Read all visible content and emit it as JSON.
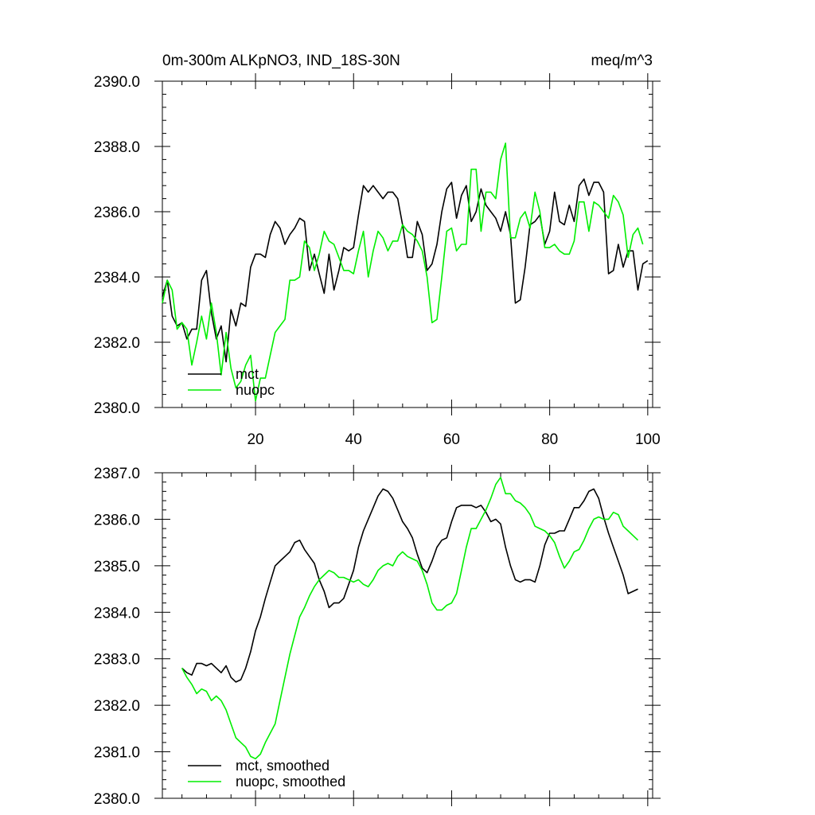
{
  "chart_data": [
    {
      "type": "line",
      "title_left": "0m-300m ALKpNO3, IND_18S-30N",
      "title_right": "meq/m^3",
      "xlim": [
        1,
        101
      ],
      "ylim": [
        2380,
        2390
      ],
      "xticks": [
        20,
        40,
        60,
        80,
        100
      ],
      "xtick_labels": [
        "20",
        "40",
        "60",
        "80",
        "100"
      ],
      "yticks": [
        2380,
        2382,
        2384,
        2386,
        2388,
        2390
      ],
      "ytick_labels": [
        "2380.0",
        "2382.0",
        "2384.0",
        "2386.0",
        "2388.0",
        "2390.0"
      ],
      "legend_position": "bottom-left",
      "colors": {
        "mct": "#000000",
        "nuopc": "#00ee00"
      },
      "series": [
        {
          "name": "mct",
          "x_start": 1,
          "values": [
            2383.4,
            2383.9,
            2382.8,
            2382.5,
            2382.6,
            2382.1,
            2382.4,
            2382.4,
            2383.9,
            2384.2,
            2382.9,
            2382.1,
            2382.5,
            2381.4,
            2383.0,
            2382.5,
            2383.2,
            2383.1,
            2384.3,
            2384.7,
            2384.7,
            2384.6,
            2385.3,
            2385.7,
            2385.5,
            2385.0,
            2385.3,
            2385.5,
            2385.8,
            2385.7,
            2384.2,
            2384.7,
            2384.1,
            2383.5,
            2384.7,
            2383.6,
            2384.2,
            2384.9,
            2384.8,
            2384.9,
            2385.9,
            2386.8,
            2386.6,
            2386.8,
            2386.6,
            2386.4,
            2386.6,
            2386.6,
            2386.4,
            2385.6,
            2384.6,
            2384.6,
            2385.7,
            2385.3,
            2384.2,
            2384.4,
            2385.0,
            2386.0,
            2386.7,
            2386.9,
            2385.8,
            2386.5,
            2386.8,
            2385.7,
            2386.0,
            2386.7,
            2386.2,
            2386.0,
            2385.8,
            2385.4,
            2386.0,
            2385.3,
            2383.2,
            2383.3,
            2384.3,
            2385.6,
            2385.7,
            2385.9,
            2385.0,
            2385.4,
            2386.6,
            2385.7,
            2385.6,
            2386.2,
            2385.7,
            2386.8,
            2387.0,
            2386.5,
            2386.9,
            2386.9,
            2386.6,
            2384.1,
            2384.2,
            2385.0,
            2384.3,
            2384.8,
            2384.8,
            2383.6,
            2384.4,
            2384.5
          ]
        },
        {
          "name": "nuopc",
          "x_start": 1,
          "values": [
            2383.2,
            2383.9,
            2383.6,
            2382.4,
            2382.6,
            2382.4,
            2381.3,
            2382.0,
            2382.8,
            2382.1,
            2383.2,
            2382.3,
            2381.0,
            2382.3,
            2381.2,
            2380.6,
            2380.8,
            2381.3,
            2381.6,
            2380.2,
            2380.9,
            2380.9,
            2381.6,
            2382.3,
            2382.5,
            2382.7,
            2383.9,
            2383.9,
            2384.0,
            2385.1,
            2384.9,
            2384.2,
            2384.7,
            2385.4,
            2385.1,
            2385.0,
            2384.6,
            2384.2,
            2384.2,
            2384.1,
            2384.8,
            2385.4,
            2384.0,
            2384.8,
            2385.4,
            2385.2,
            2384.8,
            2385.1,
            2385.1,
            2385.6,
            2385.4,
            2385.3,
            2385.1,
            2384.8,
            2384.0,
            2382.6,
            2382.7,
            2384.0,
            2385.4,
            2385.5,
            2384.8,
            2385.0,
            2385.0,
            2387.3,
            2387.3,
            2385.4,
            2386.6,
            2386.6,
            2386.4,
            2387.6,
            2388.1,
            2385.2,
            2385.2,
            2385.8,
            2386.0,
            2385.5,
            2386.6,
            2386.0,
            2384.9,
            2384.9,
            2385.0,
            2384.8,
            2384.7,
            2384.7,
            2385.1,
            2386.3,
            2386.3,
            2385.4,
            2386.3,
            2386.2,
            2386.0,
            2385.8,
            2386.5,
            2386.3,
            2385.9,
            2384.6,
            2385.3,
            2385.5,
            2385.0
          ]
        }
      ]
    },
    {
      "type": "line",
      "xlim": [
        1,
        101
      ],
      "ylim": [
        2380,
        2387
      ],
      "xticks": [
        20,
        40,
        60,
        80,
        100
      ],
      "yticks": [
        2380,
        2381,
        2382,
        2383,
        2384,
        2385,
        2386,
        2387
      ],
      "ytick_labels": [
        "2380.0",
        "2381.0",
        "2382.0",
        "2383.0",
        "2384.0",
        "2385.0",
        "2386.0",
        "2387.0"
      ],
      "legend_position": "bottom-left",
      "colors": {
        "mct": "#000000",
        "nuopc": "#00ee00"
      },
      "series": [
        {
          "name": "mct, smoothed",
          "x_start": 5,
          "values": [
            2382.8,
            2382.7,
            2382.65,
            2382.9,
            2382.9,
            2382.85,
            2382.9,
            2382.8,
            2382.7,
            2382.85,
            2382.6,
            2382.5,
            2382.55,
            2382.8,
            2383.15,
            2383.6,
            2383.9,
            2384.3,
            2384.65,
            2385.0,
            2385.1,
            2385.2,
            2385.3,
            2385.5,
            2385.55,
            2385.35,
            2385.2,
            2385.05,
            2384.7,
            2384.45,
            2384.1,
            2384.2,
            2384.2,
            2384.3,
            2384.6,
            2384.9,
            2385.4,
            2385.75,
            2386.0,
            2386.25,
            2386.5,
            2386.65,
            2386.6,
            2386.45,
            2386.2,
            2385.95,
            2385.8,
            2385.6,
            2385.25,
            2384.95,
            2384.85,
            2385.1,
            2385.4,
            2385.55,
            2385.6,
            2385.95,
            2386.25,
            2386.3,
            2386.3,
            2386.3,
            2386.25,
            2386.3,
            2386.15,
            2385.95,
            2386.0,
            2385.9,
            2385.4,
            2385.0,
            2384.7,
            2384.65,
            2384.7,
            2384.7,
            2384.65,
            2385.0,
            2385.45,
            2385.7,
            2385.7,
            2385.75,
            2385.75,
            2386.0,
            2386.25,
            2386.25,
            2386.4,
            2386.6,
            2386.65,
            2386.45,
            2386.05,
            2385.7,
            2385.4,
            2385.1,
            2384.8,
            2384.4,
            2384.45,
            2384.5
          ]
        },
        {
          "name": "nuopc, smoothed",
          "x_start": 5,
          "values": [
            2382.8,
            2382.6,
            2382.45,
            2382.25,
            2382.35,
            2382.3,
            2382.1,
            2382.2,
            2382.1,
            2381.9,
            2381.6,
            2381.3,
            2381.2,
            2381.1,
            2380.9,
            2380.85,
            2380.95,
            2381.2,
            2381.4,
            2381.6,
            2382.1,
            2382.6,
            2383.1,
            2383.5,
            2383.9,
            2384.1,
            2384.35,
            2384.55,
            2384.7,
            2384.8,
            2384.9,
            2384.85,
            2384.75,
            2384.75,
            2384.7,
            2384.65,
            2384.7,
            2384.6,
            2384.55,
            2384.7,
            2384.9,
            2385.0,
            2385.05,
            2385.0,
            2385.2,
            2385.3,
            2385.2,
            2385.15,
            2385.1,
            2384.9,
            2384.6,
            2384.2,
            2384.05,
            2384.05,
            2384.15,
            2384.2,
            2384.4,
            2384.9,
            2385.4,
            2385.8,
            2385.8,
            2386.0,
            2386.2,
            2386.45,
            2386.75,
            2386.9,
            2386.55,
            2386.55,
            2386.4,
            2386.35,
            2386.25,
            2386.1,
            2385.85,
            2385.8,
            2385.75,
            2385.65,
            2385.5,
            2385.2,
            2384.95,
            2385.1,
            2385.3,
            2385.35,
            2385.55,
            2385.8,
            2386.0,
            2386.05,
            2386.0,
            2386.0,
            2386.15,
            2386.1,
            2385.85,
            2385.75,
            2385.65,
            2385.55
          ]
        }
      ]
    }
  ]
}
